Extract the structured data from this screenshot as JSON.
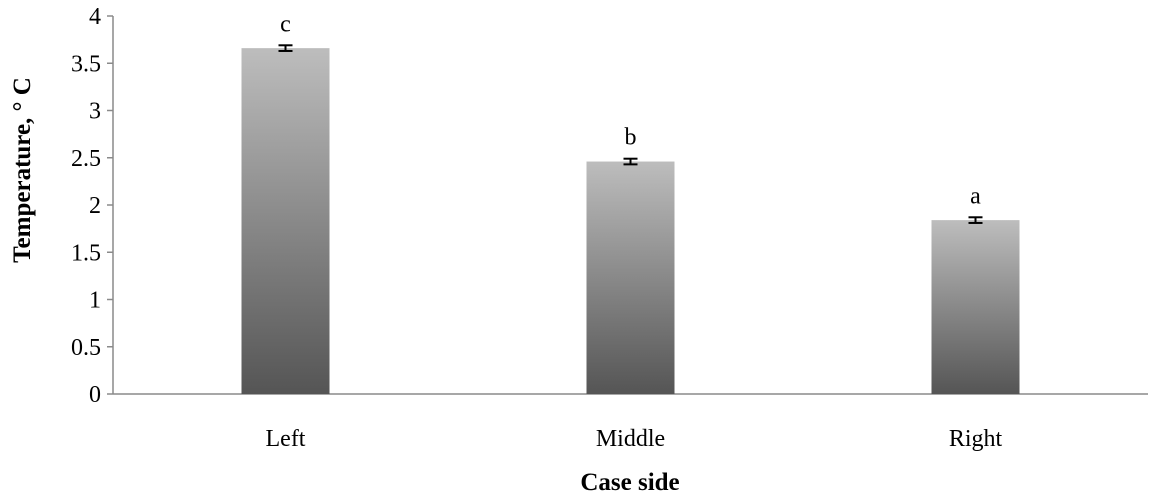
{
  "chart_data": {
    "type": "bar",
    "categories": [
      "Left",
      "Middle",
      "Right"
    ],
    "values": [
      3.66,
      2.46,
      1.84
    ],
    "error": [
      0.03,
      0.03,
      0.03
    ],
    "significance_labels": [
      "c",
      "b",
      "a"
    ],
    "xlabel": "Case side",
    "ylabel": "Temperature, ° C",
    "ylim": [
      0,
      4
    ],
    "yticks": [
      0,
      0.5,
      1,
      1.5,
      2,
      2.5,
      3,
      3.5,
      4
    ],
    "ytick_labels": [
      "0",
      "0.5",
      "1",
      "1.5",
      "2",
      "2.5",
      "3",
      "3.5",
      "4"
    ],
    "grid": false,
    "bar_gradient": {
      "top": "#bdbdbd",
      "bottom": "#555555"
    }
  }
}
